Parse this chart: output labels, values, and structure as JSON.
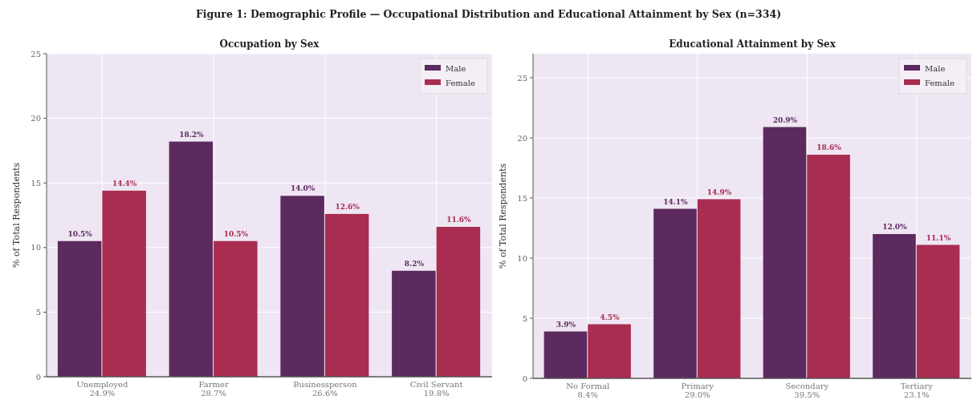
{
  "chart_data": [
    {
      "type": "bar",
      "title": "Occupation by Sex",
      "ylabel": "% of Total Respondents",
      "categories": [
        "Unemployed\n24.9%",
        "Farmer\n28.7%",
        "Businessperson\n26.6%",
        "Civil Servant\n19.8%"
      ],
      "series": [
        {
          "name": "Male",
          "color": "#5c2a5e",
          "values": [
            10.5,
            18.2,
            14.0,
            8.2
          ],
          "value_labels": [
            "10.5%",
            "18.2%",
            "14.0%",
            "8.2%"
          ]
        },
        {
          "name": "Female",
          "color": "#a82d50",
          "values": [
            14.4,
            10.5,
            12.6,
            11.6
          ],
          "value_labels": [
            "14.4%",
            "10.5%",
            "12.6%",
            "11.6%"
          ]
        }
      ],
      "ylim": [
        0,
        25
      ],
      "yticks": [
        0,
        5,
        10,
        15,
        20,
        25
      ],
      "grid": true,
      "legend": "top right",
      "annotations": [
        "Figure 1: Demographic Profile — Occupational Distribution and Educational Attainment by Sex (n=334)"
      ]
    },
    {
      "type": "bar",
      "title": "Educational Attainment by Sex",
      "ylabel": "% of Total Respondents",
      "categories": [
        "No Formal\n8.4%",
        "Primary\n29.0%",
        "Secondary\n39.5%",
        "Tertiary\n23.1%"
      ],
      "series": [
        {
          "name": "Male",
          "color": "#5c2a5e",
          "values": [
            3.9,
            14.1,
            20.9,
            12.0
          ],
          "value_labels": [
            "3.9%",
            "14.1%",
            "20.9%",
            "12.0%"
          ]
        },
        {
          "name": "Female",
          "color": "#a82d50",
          "values": [
            4.5,
            14.9,
            18.6,
            11.1
          ],
          "value_labels": [
            "4.5%",
            "14.9%",
            "18.6%",
            "11.1%"
          ]
        }
      ],
      "ylim": [
        0,
        27
      ],
      "yticks": [
        0,
        5,
        10,
        15,
        20,
        25
      ],
      "grid": true,
      "legend": "top right"
    }
  ]
}
